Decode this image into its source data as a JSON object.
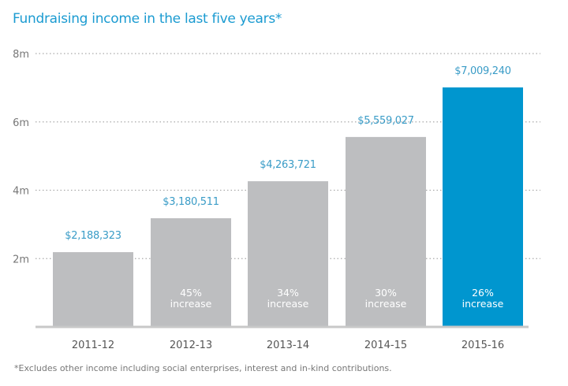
{
  "title": "Fundraising income in the last five years*",
  "footnote": "*Excludes other income including social enterprises, interest and in-kind contributions.",
  "chart_data": {
    "type": "bar",
    "categories": [
      "2011-12",
      "2012-13",
      "2013-14",
      "2014-15",
      "2015-16"
    ],
    "values": [
      2188323,
      3180511,
      4263721,
      5559027,
      7009240
    ],
    "value_labels": [
      "$2,188,323",
      "$3,180,511",
      "$4,263,721",
      "$5,559,027",
      "$7,009,240"
    ],
    "increase_labels": [
      null,
      [
        "45%",
        "increase"
      ],
      [
        "34%",
        "increase"
      ],
      [
        "30%",
        "increase"
      ],
      [
        "26%",
        "increase"
      ]
    ],
    "ylim": [
      0,
      8000000
    ],
    "yticks": [
      {
        "value": 2000000,
        "label": "2m"
      },
      {
        "value": 4000000,
        "label": "4m"
      },
      {
        "value": 6000000,
        "label": "6m"
      },
      {
        "value": 8000000,
        "label": "8m"
      }
    ],
    "grid": "dotted horizontal",
    "colors": {
      "bar": "#bdbec0",
      "highlight": "#0096cf",
      "value_label": "#3a9cc7",
      "axis": "#c8c8c8"
    },
    "highlight_index": 4
  }
}
